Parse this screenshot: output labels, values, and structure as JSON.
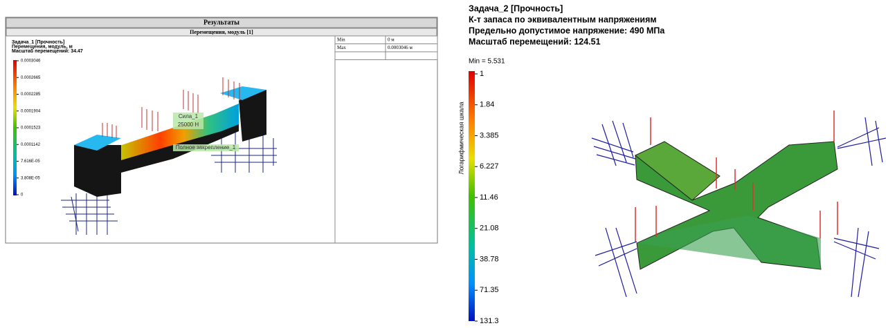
{
  "left_panel": {
    "header": "Результаты",
    "subheader": "Перемещения, модуль [1]",
    "title_lines": [
      "Задача_1 [Прочность]",
      "Перемещения, модуль, м",
      "Масштаб перемещений: 34.47"
    ],
    "scale_labels": [
      "0.0003046",
      "0.0002665",
      "0.0002285",
      "0.0001904",
      "0.0001523",
      "0.0001142",
      "7.616E-05",
      "3.808E-05",
      "0"
    ],
    "table": {
      "rows": [
        [
          "Min",
          "0 м"
        ],
        [
          "Max",
          "0.0003046 м"
        ],
        [
          "",
          ""
        ]
      ]
    },
    "annotations": {
      "force_name": "Сила_1",
      "force_value": "25000 Н",
      "fixture": "Полное закрепление_1"
    }
  },
  "right_panel": {
    "title_lines": [
      "Задача_2 [Прочность]",
      "К-т запаса по эквивалентным напряжениям",
      "Предельно допустимое напряжение: 490 МПа",
      "Масштаб перемещений: 124.51"
    ],
    "min_label": "Min = 5.531",
    "scale_axis_label": "Логарифмическая шкала",
    "scale_labels": [
      "1",
      "1.84",
      "3.385",
      "6.227",
      "11.46",
      "21.08",
      "38.78",
      "71.35",
      "131.3"
    ]
  }
}
